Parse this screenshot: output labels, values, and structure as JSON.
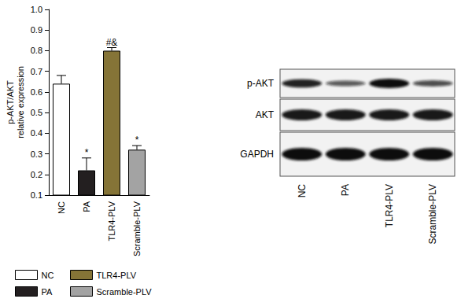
{
  "chart_data": {
    "type": "bar",
    "categories": [
      "NC",
      "PA",
      "TLR4-PLV",
      "Scramble-PLV"
    ],
    "values": [
      0.64,
      0.22,
      0.8,
      0.32
    ],
    "errors": [
      0.04,
      0.06,
      0.015,
      0.02
    ],
    "colors": [
      "#ffffff",
      "#231f20",
      "#857437",
      "#a3a3a3"
    ],
    "ylabel": "p-AKT/AKT\nrelative expression",
    "ylim": [
      0.1,
      1.0
    ],
    "yticks": [
      0.1,
      0.2,
      0.3,
      0.4,
      0.5,
      0.6,
      0.7,
      0.8,
      0.9,
      {
        "value": 1.0,
        "label": "1.0"
      }
    ],
    "annotations": [
      {
        "category": "PA",
        "text": "*"
      },
      {
        "category": "TLR4-PLV",
        "text": "#&"
      },
      {
        "category": "Scramble-PLV",
        "text": "*"
      }
    ],
    "legend": "bottom-left",
    "grid": false
  },
  "blot": {
    "rows": [
      "p-AKT",
      "AKT",
      "GAPDH"
    ],
    "lanes": [
      "NC",
      "PA",
      "TLR4-PLV",
      "Scramble-PLV"
    ]
  }
}
